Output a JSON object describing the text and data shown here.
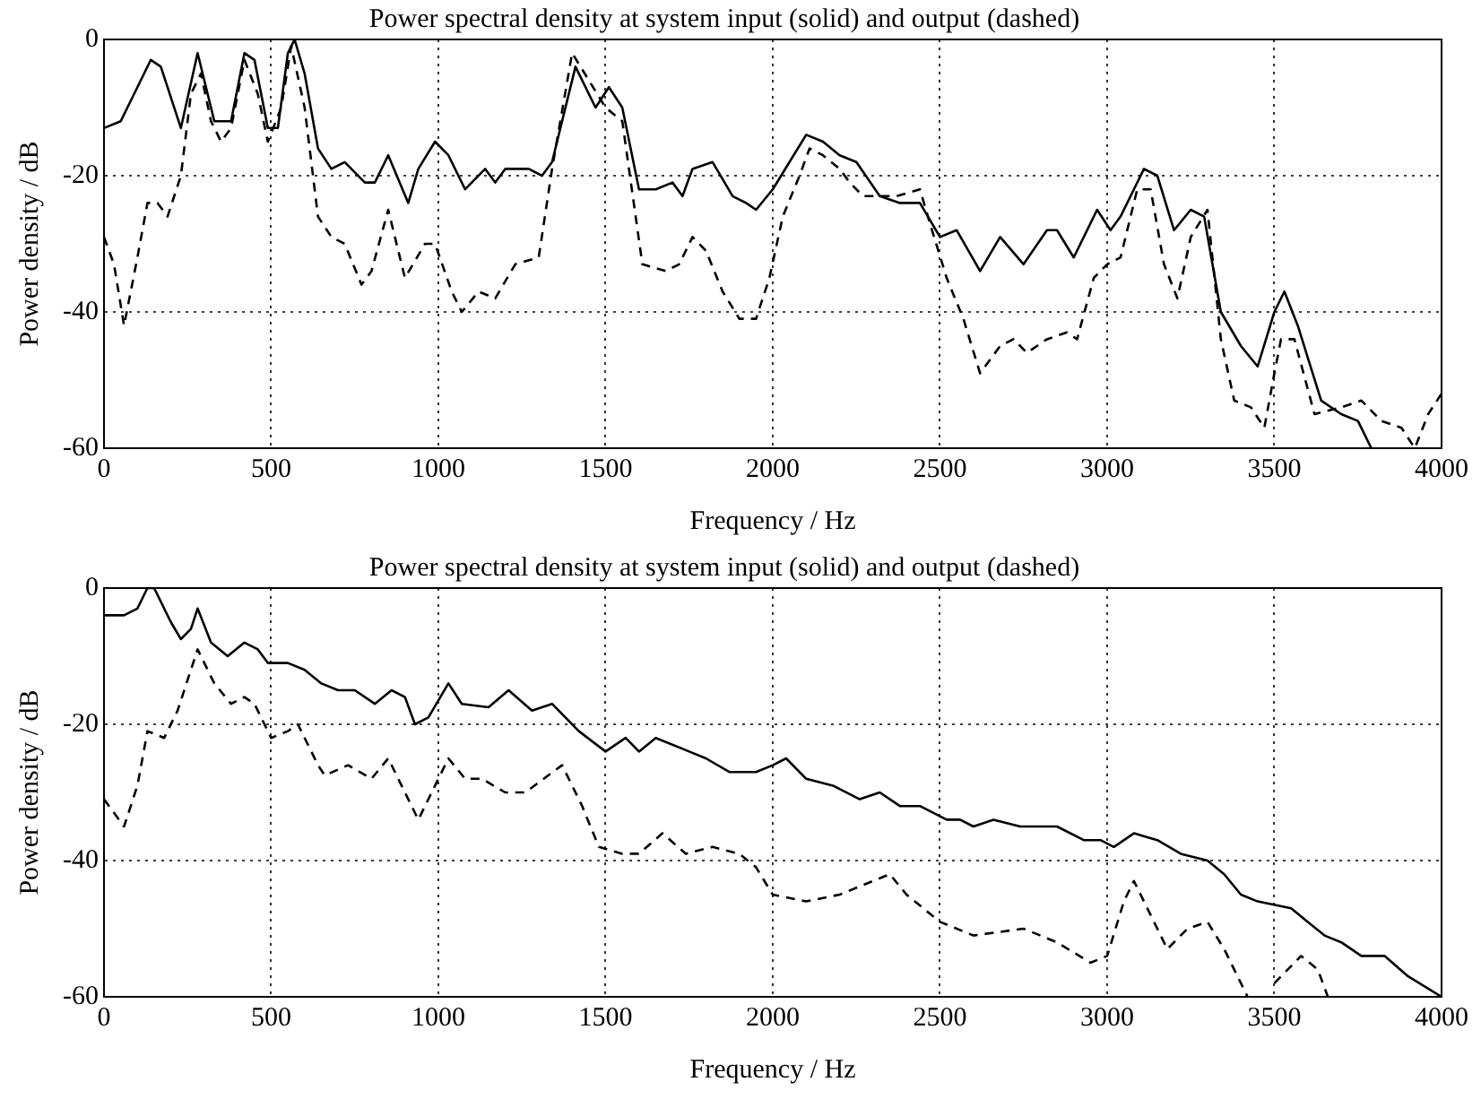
{
  "chart_data": [
    {
      "type": "line",
      "title": "Power spectral density at system input (solid) and output (dashed)",
      "xlabel": "Frequency / Hz",
      "ylabel": "Power density / dB",
      "xlim": [
        0,
        4000
      ],
      "xticks": [
        0,
        500,
        1000,
        1500,
        2000,
        2500,
        3000,
        3500,
        4000
      ],
      "ylim": [
        -60,
        0
      ],
      "yticks": [
        -60,
        -40,
        -20,
        0
      ],
      "grid": true,
      "legend": false,
      "marker": "none",
      "series": [
        {
          "color": "#000000",
          "line_style": "solid",
          "x": [
            0,
            50,
            100,
            140,
            170,
            230,
            280,
            330,
            380,
            420,
            450,
            490,
            520,
            550,
            570,
            600,
            640,
            680,
            720,
            780,
            810,
            850,
            910,
            940,
            990,
            1030,
            1080,
            1140,
            1170,
            1200,
            1270,
            1310,
            1340,
            1410,
            1470,
            1510,
            1550,
            1600,
            1650,
            1700,
            1730,
            1760,
            1820,
            1880,
            1920,
            1950,
            2000,
            2050,
            2100,
            2150,
            2200,
            2250,
            2320,
            2380,
            2440,
            2500,
            2550,
            2620,
            2680,
            2750,
            2820,
            2850,
            2900,
            2970,
            3010,
            3040,
            3110,
            3150,
            3200,
            3250,
            3290,
            3340,
            3400,
            3450,
            3500,
            3530,
            3570,
            3640,
            3700,
            3750,
            3790
          ],
          "values": [
            -13,
            -12,
            -7,
            -3,
            -4,
            -13,
            -2,
            -12,
            -12,
            -2,
            -3,
            -13,
            -13,
            -2,
            0,
            -5,
            -16,
            -19,
            -18,
            -21,
            -21,
            -17,
            -24,
            -19,
            -15,
            -17,
            -22,
            -19,
            -21,
            -19,
            -19,
            -20,
            -18,
            -4,
            -10,
            -7,
            -10,
            -22,
            -22,
            -21,
            -23,
            -19,
            -18,
            -23,
            -24,
            -25,
            -22,
            -18,
            -14,
            -15,
            -17,
            -18,
            -23,
            -24,
            -24,
            -29,
            -28,
            -34,
            -29,
            -33,
            -28,
            -28,
            -32,
            -25,
            -28,
            -26,
            -19,
            -20,
            -28,
            -25,
            -26,
            -40,
            -45,
            -48,
            -40,
            -37,
            -42,
            -53,
            -55,
            -56,
            -60
          ]
        },
        {
          "color": "#000000",
          "line_style": "dashed",
          "x": [
            0,
            30,
            60,
            100,
            130,
            160,
            190,
            230,
            260,
            290,
            320,
            350,
            380,
            420,
            460,
            490,
            530,
            560,
            600,
            640,
            680,
            720,
            770,
            800,
            850,
            900,
            960,
            990,
            1040,
            1070,
            1120,
            1170,
            1230,
            1300,
            1340,
            1400,
            1450,
            1500,
            1550,
            1590,
            1610,
            1680,
            1720,
            1760,
            1800,
            1850,
            1900,
            1950,
            1990,
            2030,
            2080,
            2110,
            2150,
            2200,
            2230,
            2270,
            2320,
            2370,
            2440,
            2470,
            2520,
            2570,
            2620,
            2680,
            2720,
            2760,
            2820,
            2880,
            2910,
            2960,
            3000,
            3040,
            3090,
            3130,
            3170,
            3210,
            3250,
            3300,
            3340,
            3380,
            3430,
            3470,
            3500,
            3520,
            3560,
            3620,
            3700,
            3760,
            3820,
            3880,
            3920,
            3960,
            4000
          ],
          "values": [
            -29,
            -33,
            -42,
            -32,
            -24,
            -24,
            -26,
            -20,
            -8,
            -5,
            -12,
            -15,
            -13,
            -3,
            -8,
            -15,
            -10,
            -1,
            -10,
            -26,
            -29,
            -30,
            -36,
            -34,
            -25,
            -35,
            -30,
            -30,
            -37,
            -40,
            -37,
            -38,
            -33,
            -32,
            -19,
            -2,
            -6,
            -10,
            -12,
            -26,
            -33,
            -34,
            -33,
            -29,
            -31,
            -37,
            -41,
            -41,
            -35,
            -26,
            -20,
            -16,
            -17,
            -19,
            -21,
            -23,
            -23,
            -23,
            -22,
            -27,
            -35,
            -41,
            -49,
            -45,
            -44,
            -46,
            -44,
            -43,
            -44,
            -35,
            -33,
            -32,
            -22,
            -22,
            -33,
            -38,
            -29,
            -25,
            -44,
            -53,
            -54,
            -57,
            -49,
            -44,
            -44,
            -55,
            -54,
            -53,
            -56,
            -57,
            -60,
            -55,
            -52
          ]
        }
      ]
    },
    {
      "type": "line",
      "title": "Power spectral density at system input (solid) and output (dashed)",
      "xlabel": "Frequency / Hz",
      "ylabel": "Power density / dB",
      "xlim": [
        0,
        4000
      ],
      "xticks": [
        0,
        500,
        1000,
        1500,
        2000,
        2500,
        3000,
        3500,
        4000
      ],
      "ylim": [
        -60,
        0
      ],
      "yticks": [
        -60,
        -40,
        -20,
        0
      ],
      "grid": true,
      "legend": false,
      "marker": "none",
      "series": [
        {
          "color": "#000000",
          "line_style": "solid",
          "x": [
            0,
            60,
            100,
            130,
            150,
            200,
            230,
            260,
            280,
            320,
            370,
            420,
            460,
            490,
            550,
            600,
            650,
            700,
            750,
            810,
            860,
            900,
            930,
            970,
            1030,
            1070,
            1150,
            1210,
            1280,
            1340,
            1420,
            1500,
            1560,
            1600,
            1650,
            1750,
            1800,
            1870,
            1950,
            2000,
            2040,
            2100,
            2180,
            2260,
            2320,
            2380,
            2440,
            2520,
            2560,
            2600,
            2660,
            2740,
            2850,
            2930,
            2980,
            3020,
            3080,
            3150,
            3220,
            3300,
            3350,
            3400,
            3450,
            3550,
            3600,
            3650,
            3700,
            3760,
            3830,
            3900,
            4000
          ],
          "values": [
            -4,
            -4,
            -3,
            0,
            0,
            -5,
            -7.5,
            -6,
            -3,
            -8,
            -10,
            -8,
            -9,
            -11,
            -11,
            -12,
            -14,
            -15,
            -15,
            -17,
            -15,
            -16,
            -20,
            -19,
            -14,
            -17,
            -17.5,
            -15,
            -18,
            -17,
            -21,
            -24,
            -22,
            -24,
            -22,
            -24,
            -25,
            -27,
            -27,
            -26,
            -25,
            -28,
            -29,
            -31,
            -30,
            -32,
            -32,
            -34,
            -34,
            -35,
            -34,
            -35,
            -35,
            -37,
            -37,
            -38,
            -36,
            -37,
            -39,
            -40,
            -42,
            -45,
            -46,
            -47,
            -49,
            -51,
            -52,
            -54,
            -54,
            -57,
            -60
          ]
        },
        {
          "color": "#000000",
          "line_style": "dashed",
          "x": [
            0,
            60,
            100,
            130,
            180,
            220,
            280,
            330,
            380,
            420,
            450,
            500,
            550,
            580,
            640,
            660,
            730,
            800,
            850,
            900,
            940,
            980,
            1030,
            1080,
            1130,
            1200,
            1260,
            1370,
            1430,
            1480,
            1550,
            1600,
            1670,
            1740,
            1820,
            1900,
            1950,
            2000,
            2100,
            2200,
            2350,
            2400,
            2500,
            2600,
            2750,
            2850,
            2950,
            3000,
            3050,
            3080,
            3120,
            3180,
            3240,
            3300,
            3350,
            3420,
            3460,
            3500,
            3580,
            3630,
            3660
          ],
          "values": [
            -31,
            -35,
            -29,
            -21,
            -22,
            -18,
            -9,
            -14,
            -17,
            -16,
            -17,
            -22,
            -21,
            -20,
            -26,
            -27.5,
            -26,
            -28,
            -25,
            -30,
            -34,
            -30,
            -25,
            -28,
            -28,
            -30,
            -30,
            -26,
            -32,
            -38,
            -39,
            -39,
            -36,
            -39,
            -38,
            -39,
            -41,
            -45,
            -46,
            -45,
            -42,
            -45,
            -49,
            -51,
            -50,
            -52,
            -55,
            -54,
            -46,
            -43,
            -47,
            -53,
            -50,
            -49,
            -53,
            -60,
            null,
            -58,
            -54,
            -56,
            -60
          ]
        }
      ]
    }
  ]
}
